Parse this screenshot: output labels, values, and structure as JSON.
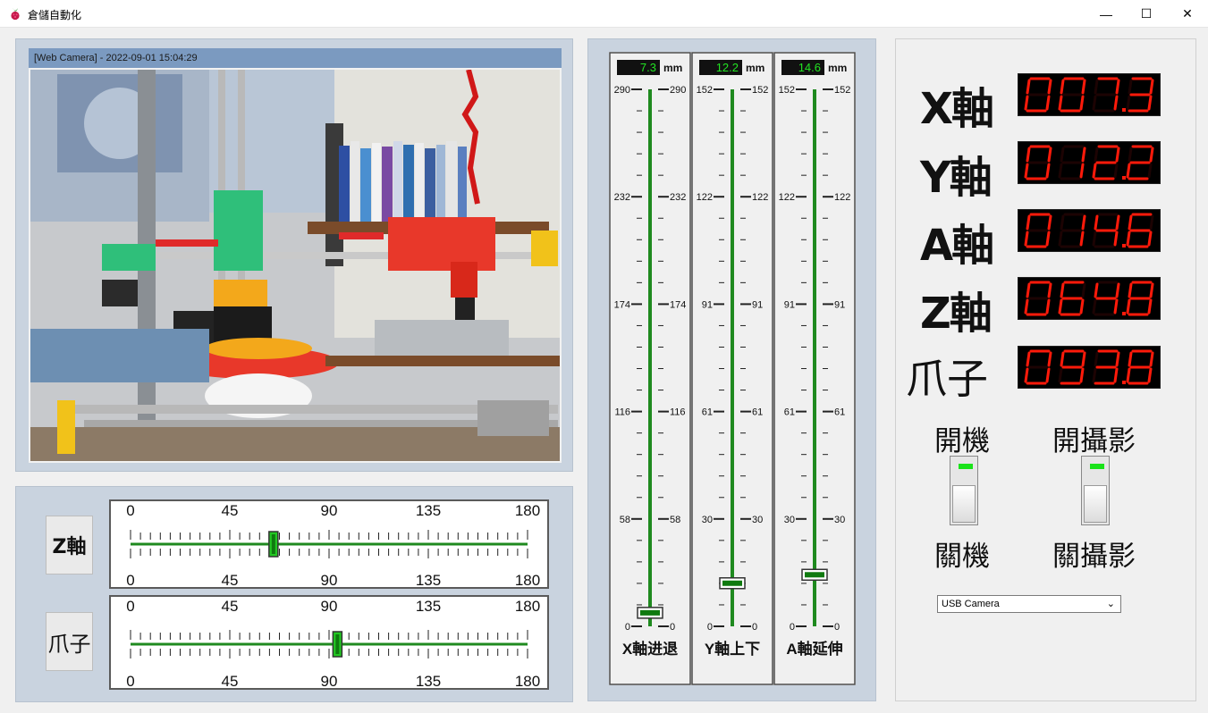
{
  "window": {
    "title": "倉儲自動化",
    "minimize_glyph": "—",
    "maximize_glyph": "☐",
    "close_glyph": "✕",
    "app_icon": "raspberry-icon"
  },
  "camera": {
    "header": "[Web Camera] - 2022-09-01 15:04:29"
  },
  "horizontal_sliders": [
    {
      "button_label": "Z軸",
      "min": 0,
      "max": 180,
      "tick_labels": [
        "0",
        "45",
        "90",
        "135",
        "180"
      ],
      "value": 64.8
    },
    {
      "button_label": "爪子",
      "min": 0,
      "max": 180,
      "tick_labels": [
        "0",
        "45",
        "90",
        "135",
        "180"
      ],
      "value": 93.8
    }
  ],
  "vertical_sliders": [
    {
      "readout": "7.3",
      "unit": "mm",
      "max": 290,
      "value": 7.3,
      "tick_labels": [
        "290",
        "232",
        "174",
        "116",
        "58",
        "0"
      ],
      "caption": "X軸进退"
    },
    {
      "readout": "12.2",
      "unit": "mm",
      "max": 152,
      "value": 12.2,
      "tick_labels": [
        "152",
        "122",
        "91",
        "61",
        "30",
        "0"
      ],
      "caption": "Y軸上下"
    },
    {
      "readout": "14.6",
      "unit": "mm",
      "max": 152,
      "value": 14.6,
      "tick_labels": [
        "152",
        "122",
        "91",
        "61",
        "30",
        "0"
      ],
      "caption": "A軸延伸"
    }
  ],
  "readouts": [
    {
      "label": "X軸",
      "value": "007.3"
    },
    {
      "label": "Y軸",
      "value": "012.2"
    },
    {
      "label": "A軸",
      "value": "014.6"
    },
    {
      "label": "Z軸",
      "value": "064.8"
    },
    {
      "label": "爪子",
      "value": "093.8"
    }
  ],
  "toggles": [
    {
      "on_label": "開機",
      "off_label": "關機",
      "state": "on"
    },
    {
      "on_label": "開攝影",
      "off_label": "關攝影",
      "state": "on"
    }
  ],
  "camera_select": {
    "value": "USB Camera",
    "arrow_glyph": "⌄"
  },
  "colors": {
    "slider_track": "#1f8a1f",
    "thumb_fill": "#22c822",
    "readout_green": "#22e322",
    "seven_segment_red": "#ff1a0a",
    "panel_bg": "#c9d3df"
  }
}
